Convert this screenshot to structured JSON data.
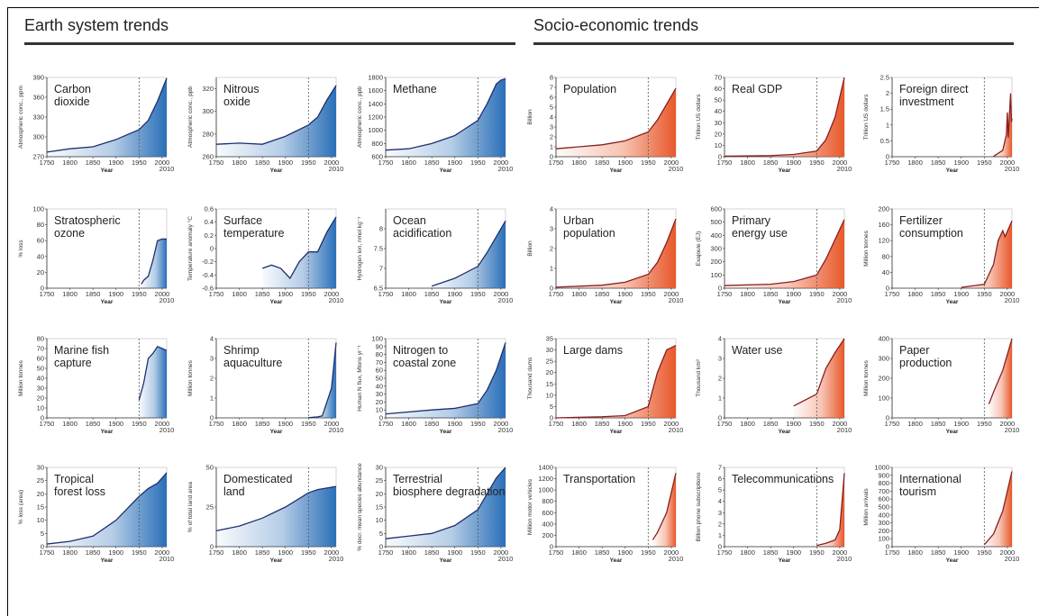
{
  "panels": {
    "earth_title": "Earth system trends",
    "socio_title": "Socio-economic trends"
  },
  "colors": {
    "earth_line": "#1f2f6e",
    "earth_fill": "#2a6fb8",
    "socio_line": "#8a1e1e",
    "socio_fill": "#e8582a"
  },
  "chart_data": [
    {
      "id": "co2",
      "type": "area",
      "title_lines": [
        "Carbon",
        "dioxide"
      ],
      "ylabel": "Atmospheric conc., ppm",
      "xlabel": "Year",
      "ylim": [
        270,
        390
      ],
      "yticks": [
        270,
        300,
        330,
        360,
        390
      ],
      "x": [
        1750,
        1800,
        1850,
        1900,
        1950,
        1970,
        1990,
        2010
      ],
      "y": [
        277,
        282,
        285,
        296,
        311,
        325,
        354,
        389
      ]
    },
    {
      "id": "n2o",
      "type": "area",
      "title_lines": [
        "Nitrous",
        "oxide"
      ],
      "ylabel": "Atmospheric conc., ppb",
      "xlabel": "Year",
      "ylim": [
        260,
        330
      ],
      "yticks": [
        260,
        280,
        300,
        320
      ],
      "x": [
        1750,
        1800,
        1850,
        1900,
        1950,
        1970,
        1990,
        2010
      ],
      "y": [
        271,
        272,
        271,
        278,
        288,
        295,
        310,
        323
      ]
    },
    {
      "id": "ch4",
      "type": "area",
      "title_lines": [
        "Methane"
      ],
      "ylabel": "Atmospheric conc., ppb",
      "xlabel": "Year",
      "ylim": [
        600,
        1800
      ],
      "yticks": [
        600,
        800,
        1000,
        1200,
        1400,
        1600,
        1800
      ],
      "x": [
        1750,
        1800,
        1850,
        1900,
        1950,
        1970,
        1990,
        2000,
        2010
      ],
      "y": [
        700,
        720,
        800,
        920,
        1150,
        1400,
        1700,
        1760,
        1780
      ]
    },
    {
      "id": "ozone",
      "type": "area",
      "title_lines": [
        "Stratospheric",
        "ozone"
      ],
      "ylabel": "% loss",
      "xlabel": "Year",
      "ylim": [
        0,
        100
      ],
      "yticks": [
        0,
        20,
        40,
        60,
        80,
        100
      ],
      "x": [
        1955,
        1960,
        1970,
        1980,
        1990,
        2000,
        2010
      ],
      "y": [
        5,
        10,
        15,
        35,
        60,
        62,
        62
      ]
    },
    {
      "id": "temp",
      "type": "area",
      "title_lines": [
        "Surface",
        "temperature"
      ],
      "ylabel": "Temperature anomaly °C",
      "xlabel": "Year",
      "ylim": [
        -0.6,
        0.6
      ],
      "yticks": [
        -0.6,
        -0.4,
        -0.2,
        0,
        0.2,
        0.4,
        0.6
      ],
      "x": [
        1850,
        1870,
        1890,
        1910,
        1930,
        1950,
        1970,
        1990,
        2010
      ],
      "y": [
        -0.3,
        -0.25,
        -0.3,
        -0.45,
        -0.2,
        -0.05,
        -0.05,
        0.25,
        0.48
      ]
    },
    {
      "id": "ocean",
      "type": "area",
      "title_lines": [
        "Ocean",
        "acidification"
      ],
      "ylabel": "Hydrogen ion, nmol kg⁻¹",
      "xlabel": "Year",
      "ylim": [
        6.5,
        8.5
      ],
      "yticks": [
        6.5,
        7.0,
        7.5,
        8.0
      ],
      "x": [
        1850,
        1900,
        1950,
        1970,
        1990,
        2010
      ],
      "y": [
        6.55,
        6.75,
        7.05,
        7.4,
        7.8,
        8.2
      ]
    },
    {
      "id": "fish",
      "type": "area",
      "title_lines": [
        "Marine fish",
        "capture"
      ],
      "ylabel": "Million tonnes",
      "xlabel": "Year",
      "ylim": [
        0,
        80
      ],
      "yticks": [
        0,
        10,
        20,
        30,
        40,
        50,
        60,
        70,
        80
      ],
      "x": [
        1950,
        1960,
        1970,
        1980,
        1990,
        2000,
        2010
      ],
      "y": [
        18,
        35,
        60,
        65,
        72,
        70,
        68
      ]
    },
    {
      "id": "shrimp",
      "type": "area",
      "title_lines": [
        "Shrimp",
        "aquaculture"
      ],
      "ylabel": "Million tonnes",
      "xlabel": "Year",
      "ylim": [
        0,
        4
      ],
      "yticks": [
        0,
        1,
        2,
        3,
        4
      ],
      "x": [
        1950,
        1970,
        1980,
        1990,
        2000,
        2010
      ],
      "y": [
        0.01,
        0.05,
        0.1,
        0.8,
        1.5,
        3.8
      ]
    },
    {
      "id": "nitrogen",
      "type": "area",
      "title_lines": [
        "Nitrogen to",
        "coastal zone"
      ],
      "ylabel": "Human N flux, Mtons yr⁻¹",
      "xlabel": "Year",
      "ylim": [
        0,
        100
      ],
      "yticks": [
        0,
        10,
        20,
        30,
        40,
        50,
        60,
        70,
        80,
        90,
        100
      ],
      "x": [
        1750,
        1850,
        1900,
        1950,
        1970,
        1990,
        2010
      ],
      "y": [
        5,
        10,
        12,
        18,
        35,
        60,
        95
      ]
    },
    {
      "id": "forest",
      "type": "area",
      "title_lines": [
        "Tropical",
        "forest loss"
      ],
      "ylabel": "% loss (area)",
      "xlabel": "Year",
      "ylim": [
        0,
        30
      ],
      "yticks": [
        0,
        5,
        10,
        15,
        20,
        25,
        30
      ],
      "x": [
        1750,
        1800,
        1850,
        1900,
        1950,
        1970,
        1990,
        2010
      ],
      "y": [
        1,
        2,
        4,
        10,
        19,
        22,
        24,
        28
      ]
    },
    {
      "id": "land",
      "type": "area",
      "title_lines": [
        "Domesticated",
        "land"
      ],
      "ylabel": "% of total land area",
      "xlabel": "Year",
      "ylim": [
        0,
        50
      ],
      "yticks": [
        0,
        25,
        50
      ],
      "x": [
        1750,
        1800,
        1850,
        1900,
        1950,
        1970,
        1990,
        2010
      ],
      "y": [
        10,
        13,
        18,
        25,
        34,
        36,
        37,
        38
      ]
    },
    {
      "id": "biosphere",
      "type": "area",
      "title_lines": [
        "Terrestrial",
        "biosphere degradation"
      ],
      "ylabel": "% decr. mean species abundance",
      "xlabel": "Year",
      "ylim": [
        0,
        30
      ],
      "yticks": [
        0,
        5,
        10,
        15,
        20,
        25,
        30
      ],
      "x": [
        1750,
        1800,
        1850,
        1900,
        1950,
        1970,
        1990,
        2010
      ],
      "y": [
        3,
        4,
        5,
        8,
        14,
        20,
        26,
        30
      ]
    },
    {
      "id": "pop",
      "type": "area",
      "title_lines": [
        "Population"
      ],
      "ylabel": "Billion",
      "xlabel": "Year",
      "ylim": [
        0,
        8
      ],
      "yticks": [
        0,
        1,
        2,
        3,
        4,
        5,
        6,
        7,
        8
      ],
      "x": [
        1750,
        1800,
        1850,
        1900,
        1950,
        1970,
        1990,
        2010
      ],
      "y": [
        0.8,
        1.0,
        1.2,
        1.6,
        2.5,
        3.7,
        5.3,
        6.9
      ]
    },
    {
      "id": "gdp",
      "type": "area",
      "title_lines": [
        "Real GDP"
      ],
      "ylabel": "Trillion US dollars",
      "xlabel": "Year",
      "ylim": [
        0,
        70
      ],
      "yticks": [
        0,
        10,
        20,
        30,
        40,
        50,
        60,
        70
      ],
      "x": [
        1750,
        1850,
        1900,
        1950,
        1970,
        1990,
        2010
      ],
      "y": [
        0.5,
        1,
        2,
        5,
        15,
        35,
        70
      ]
    },
    {
      "id": "fdi",
      "type": "area",
      "title_lines": [
        "Foreign direct",
        "investment"
      ],
      "ylabel": "Trillion US dollars",
      "xlabel": "Year",
      "ylim": [
        0,
        2.5
      ],
      "yticks": [
        0,
        0.5,
        1.0,
        1.5,
        2.0,
        2.5
      ],
      "x": [
        1970,
        1990,
        1998,
        2000,
        2002,
        2007,
        2009,
        2010
      ],
      "y": [
        0.01,
        0.2,
        0.7,
        1.4,
        0.6,
        2.0,
        1.1,
        1.2
      ]
    },
    {
      "id": "urban",
      "type": "area",
      "title_lines": [
        "Urban",
        "population"
      ],
      "ylabel": "Billion",
      "xlabel": "Year",
      "ylim": [
        0,
        4
      ],
      "yticks": [
        0,
        1,
        2,
        3,
        4
      ],
      "x": [
        1750,
        1800,
        1850,
        1900,
        1950,
        1970,
        1990,
        2010
      ],
      "y": [
        0.05,
        0.1,
        0.15,
        0.3,
        0.7,
        1.3,
        2.3,
        3.5
      ]
    },
    {
      "id": "energy",
      "type": "area",
      "title_lines": [
        "Primary",
        "energy use"
      ],
      "ylabel": "Exajoule (EJ)",
      "xlabel": "Year",
      "ylim": [
        0,
        600
      ],
      "yticks": [
        0,
        100,
        200,
        300,
        400,
        500,
        600
      ],
      "x": [
        1750,
        1850,
        1900,
        1950,
        1970,
        1990,
        2010
      ],
      "y": [
        20,
        30,
        50,
        100,
        220,
        370,
        520
      ]
    },
    {
      "id": "fert",
      "type": "area",
      "title_lines": [
        "Fertilizer",
        "consumption"
      ],
      "ylabel": "Million tonnes",
      "xlabel": "Year",
      "ylim": [
        0,
        200
      ],
      "yticks": [
        0,
        40,
        80,
        120,
        160,
        200
      ],
      "x": [
        1900,
        1950,
        1970,
        1980,
        1990,
        1995,
        2010
      ],
      "y": [
        2,
        10,
        60,
        120,
        145,
        130,
        170
      ]
    },
    {
      "id": "dams",
      "type": "area",
      "title_lines": [
        "Large dams"
      ],
      "ylabel": "Thousand dams",
      "xlabel": "Year",
      "ylim": [
        0,
        35
      ],
      "yticks": [
        0,
        5,
        10,
        15,
        20,
        25,
        30,
        35
      ],
      "x": [
        1750,
        1850,
        1900,
        1950,
        1970,
        1990,
        2010
      ],
      "y": [
        0,
        0.5,
        1,
        5,
        20,
        30,
        32
      ]
    },
    {
      "id": "water",
      "type": "area",
      "title_lines": [
        "Water use"
      ],
      "ylabel": "Thousand km³",
      "xlabel": "Year",
      "ylim": [
        0,
        4
      ],
      "yticks": [
        0,
        1,
        2,
        3,
        4
      ],
      "x": [
        1900,
        1950,
        1970,
        1990,
        2010
      ],
      "y": [
        0.6,
        1.2,
        2.5,
        3.3,
        4.0
      ]
    },
    {
      "id": "paper",
      "type": "area",
      "title_lines": [
        "Paper",
        "production"
      ],
      "ylabel": "Million tonnes",
      "xlabel": "Year",
      "ylim": [
        0,
        400
      ],
      "yticks": [
        0,
        100,
        200,
        300,
        400
      ],
      "x": [
        1960,
        1970,
        1990,
        2010
      ],
      "y": [
        70,
        130,
        240,
        400
      ]
    },
    {
      "id": "transport",
      "type": "area",
      "title_lines": [
        "Transportation"
      ],
      "ylabel": "Million motor vehicles",
      "xlabel": "Year",
      "ylim": [
        0,
        1400
      ],
      "yticks": [
        0,
        200,
        400,
        600,
        800,
        1000,
        1200,
        1400
      ],
      "x": [
        1960,
        1970,
        1990,
        2010
      ],
      "y": [
        120,
        250,
        600,
        1300
      ]
    },
    {
      "id": "telecom",
      "type": "area",
      "title_lines": [
        "Telecommunications"
      ],
      "ylabel": "Billion phone subscriptions",
      "xlabel": "Year",
      "ylim": [
        0,
        7
      ],
      "yticks": [
        0,
        1,
        2,
        3,
        4,
        5,
        6,
        7
      ],
      "x": [
        1950,
        1970,
        1990,
        2000,
        2010
      ],
      "y": [
        0.1,
        0.3,
        0.6,
        1.5,
        6.5
      ]
    },
    {
      "id": "tourism",
      "type": "area",
      "title_lines": [
        "International",
        "tourism"
      ],
      "ylabel": "Million arrivals",
      "xlabel": "Year",
      "ylim": [
        0,
        1000
      ],
      "yticks": [
        0,
        100,
        200,
        300,
        400,
        500,
        600,
        700,
        800,
        900,
        1000
      ],
      "x": [
        1950,
        1970,
        1990,
        2010
      ],
      "y": [
        25,
        160,
        450,
        950
      ]
    }
  ],
  "axis": {
    "xticks": [
      "1750",
      "1800",
      "1850",
      "1900",
      "1950",
      "2000"
    ],
    "end_label": "2010",
    "marker_year": 1950
  }
}
